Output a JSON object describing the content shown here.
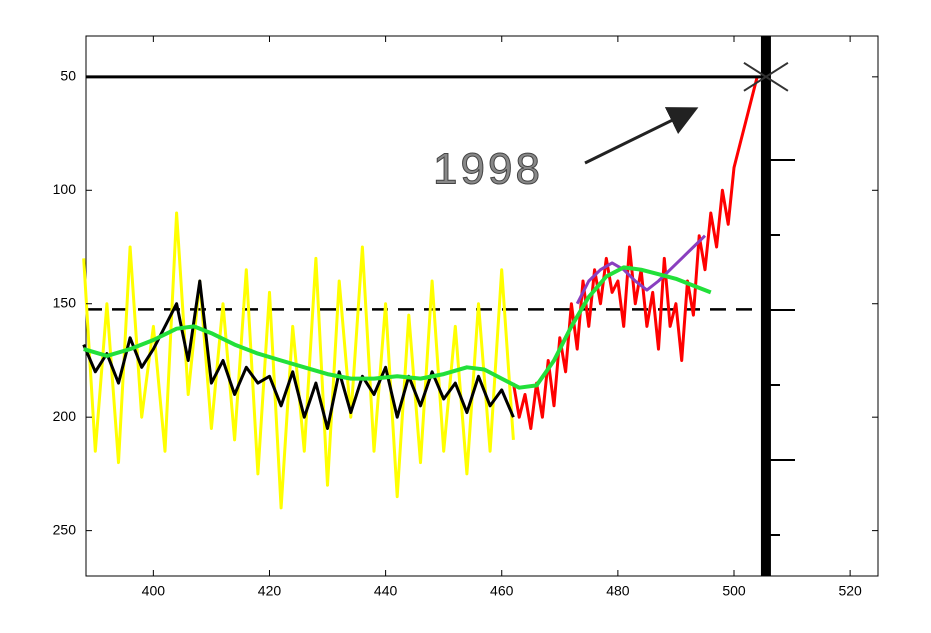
{
  "chart_data": {
    "type": "line",
    "annotation": "1998",
    "xlim": [
      388.4,
      524.8
    ],
    "ylim": [
      32,
      270
    ],
    "y_reversed": true,
    "xticks": [
      400,
      420,
      440,
      460,
      480,
      500,
      520
    ],
    "yticks": [
      50,
      100,
      150,
      200,
      250
    ],
    "hline": 50,
    "dashed_hline": 152.5,
    "vline": 505.5,
    "series": [
      {
        "color": "#ffff00",
        "width": 3,
        "x": [
          388,
          390,
          392,
          394,
          396,
          398,
          400,
          402,
          404,
          406,
          408,
          410,
          412,
          414,
          416,
          418,
          420,
          422,
          424,
          426,
          428,
          430,
          432,
          434,
          436,
          438,
          440,
          442,
          444,
          446,
          448,
          450,
          452,
          454,
          456,
          458,
          460,
          462
        ],
        "values": [
          130,
          215,
          150,
          220,
          125,
          200,
          160,
          215,
          110,
          190,
          140,
          205,
          150,
          210,
          135,
          225,
          145,
          240,
          160,
          215,
          130,
          230,
          140,
          200,
          125,
          215,
          150,
          235,
          155,
          220,
          140,
          215,
          160,
          225,
          150,
          215,
          135,
          210
        ]
      },
      {
        "color": "#000000",
        "width": 3,
        "x": [
          388,
          390,
          392,
          394,
          396,
          398,
          400,
          402,
          404,
          406,
          408,
          410,
          412,
          414,
          416,
          418,
          420,
          422,
          424,
          426,
          428,
          430,
          432,
          434,
          436,
          438,
          440,
          442,
          444,
          446,
          448,
          450,
          452,
          454,
          456,
          458,
          460,
          462
        ],
        "values": [
          168,
          180,
          172,
          185,
          165,
          178,
          170,
          160,
          150,
          175,
          140,
          185,
          175,
          190,
          178,
          185,
          182,
          195,
          180,
          200,
          185,
          205,
          180,
          198,
          182,
          190,
          178,
          200,
          182,
          195,
          180,
          192,
          185,
          198,
          182,
          195,
          188,
          200
        ]
      },
      {
        "color": "#ff0000",
        "width": 3,
        "x": [
          462,
          463,
          464,
          465,
          466,
          467,
          468,
          469,
          470,
          471,
          472,
          473,
          474,
          475,
          476,
          477,
          478,
          479,
          480,
          481,
          482,
          483,
          484,
          485,
          486,
          487,
          488,
          489,
          490,
          491,
          492,
          493,
          494,
          495,
          496,
          497,
          498,
          499,
          500,
          501,
          502,
          503,
          504
        ],
        "values": [
          185,
          200,
          190,
          205,
          185,
          200,
          175,
          195,
          165,
          180,
          150,
          170,
          140,
          160,
          135,
          150,
          130,
          145,
          140,
          160,
          125,
          150,
          135,
          160,
          145,
          170,
          130,
          160,
          150,
          175,
          140,
          155,
          120,
          135,
          110,
          125,
          100,
          115,
          90,
          80,
          70,
          60,
          50
        ]
      },
      {
        "color": "#8a3fbf",
        "width": 3,
        "x": [
          473,
          475,
          477,
          479,
          481,
          483,
          485,
          487,
          489,
          491,
          493,
          495
        ],
        "values": [
          150,
          140,
          135,
          132,
          135,
          140,
          144,
          140,
          135,
          130,
          125,
          120
        ]
      },
      {
        "color": "#22e03a",
        "width": 4,
        "x": [
          388,
          392,
          396,
          400,
          404,
          407,
          410,
          414,
          418,
          422,
          426,
          430,
          434,
          438,
          442,
          446,
          450,
          454,
          457,
          460,
          463,
          466,
          469,
          472,
          475,
          478,
          481,
          484,
          487,
          490,
          493,
          496
        ],
        "values": [
          170,
          173,
          170,
          166,
          161,
          160,
          163,
          168,
          172,
          175,
          178,
          181,
          183,
          183,
          182,
          183,
          181,
          178,
          179,
          183,
          187,
          186,
          175,
          160,
          147,
          138,
          134,
          135,
          137,
          139,
          142,
          145
        ]
      }
    ]
  }
}
